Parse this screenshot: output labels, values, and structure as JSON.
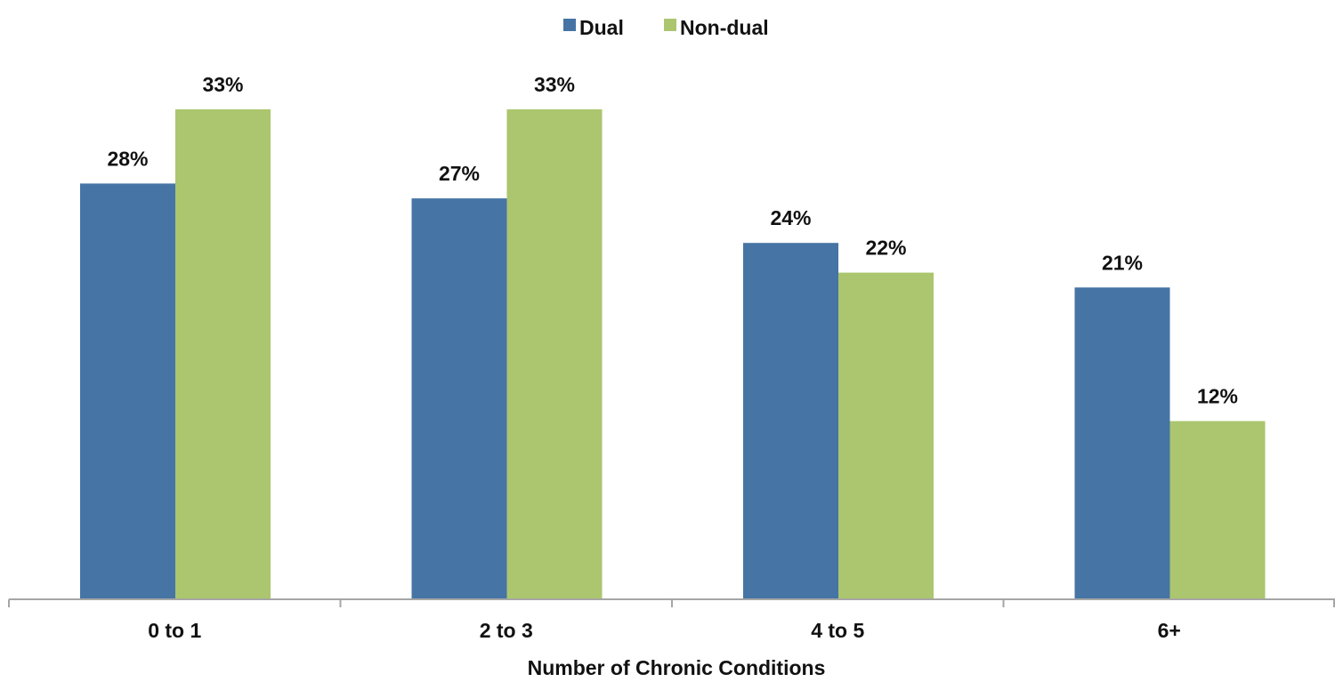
{
  "chart_data": {
    "type": "bar",
    "categories": [
      "0 to 1",
      "2 to 3",
      "4 to 5",
      "6+"
    ],
    "series": [
      {
        "name": "Dual",
        "values": [
          28,
          27,
          24,
          21
        ],
        "labels": [
          "28%",
          "27%",
          "24%",
          "21%"
        ],
        "color": "#4674A5"
      },
      {
        "name": "Non-dual",
        "values": [
          33,
          33,
          22,
          12
        ],
        "labels": [
          "33%",
          "33%",
          "22%",
          "12%"
        ],
        "color": "#ABC66E"
      }
    ],
    "title": "",
    "xlabel": "Number of Chronic Conditions",
    "ylabel": "",
    "ylim": [
      0,
      35
    ],
    "grid": false,
    "legend": "top-center",
    "axis_color": "#A6A6A6"
  }
}
